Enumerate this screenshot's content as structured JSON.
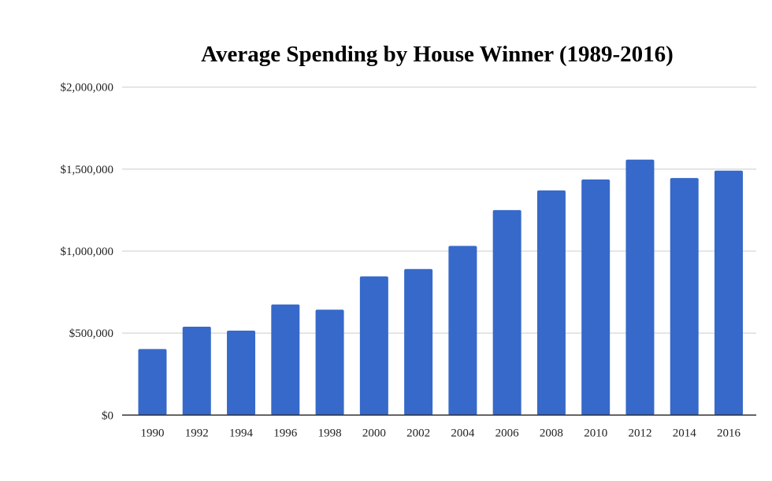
{
  "chart_data": {
    "type": "bar",
    "title": "Average Spending by House Winner (1989-2016)",
    "xlabel": "",
    "ylabel": "",
    "categories": [
      "1990",
      "1992",
      "1994",
      "1996",
      "1998",
      "2000",
      "2002",
      "2004",
      "2006",
      "2008",
      "2010",
      "2012",
      "2014",
      "2016"
    ],
    "values": [
      403000,
      539000,
      515000,
      675000,
      643000,
      846000,
      891000,
      1032000,
      1250000,
      1370000,
      1437000,
      1558000,
      1446000,
      1491000
    ],
    "ylim": [
      0,
      2000000
    ],
    "yticks": [
      0,
      500000,
      1000000,
      1500000,
      2000000
    ],
    "ytick_labels": [
      "$0",
      "$500,000",
      "$1,000,000",
      "$1,500,000",
      "$2,000,000"
    ],
    "grid": true,
    "legend": "none",
    "colors": {
      "bar": "#3669c9",
      "grid": "#cccccc",
      "axis": "#333333"
    }
  }
}
